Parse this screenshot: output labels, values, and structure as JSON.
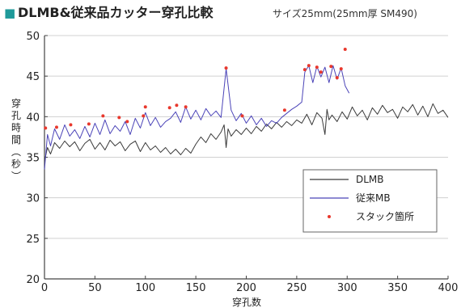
{
  "header": {
    "marker": "■",
    "title": "DLMB&従来品カッター穿孔比較",
    "subtitle": "サイズ25mm(25mm厚 SM490)"
  },
  "colors": {
    "title_marker": "#1f9a9a",
    "dlmb": "#3a3a3a",
    "conventional": "#4b44b8",
    "stack": "#e8382d",
    "axis": "#444444",
    "grid": "#d0d0d0"
  },
  "chart_data": {
    "type": "line",
    "xlabel": "穿孔数",
    "ylabel": "穿孔時間(秒)",
    "xlim": [
      0,
      400
    ],
    "ylim": [
      20,
      50
    ],
    "xticks": [
      0,
      50,
      100,
      150,
      200,
      250,
      300,
      350,
      400
    ],
    "yticks": [
      20,
      25,
      30,
      35,
      40,
      45,
      50
    ],
    "grid": "horizontal",
    "legend": {
      "position": "bottom-right",
      "entries": [
        "DLMB",
        "従来MB",
        "スタック箇所"
      ]
    },
    "series": [
      {
        "name": "DLMB",
        "kind": "line",
        "x": [
          0,
          3,
          6,
          10,
          15,
          20,
          25,
          30,
          35,
          40,
          45,
          50,
          55,
          60,
          65,
          70,
          75,
          80,
          85,
          90,
          95,
          100,
          105,
          110,
          115,
          120,
          125,
          130,
          135,
          140,
          145,
          150,
          155,
          160,
          165,
          170,
          175,
          178,
          180,
          182,
          185,
          190,
          195,
          200,
          205,
          210,
          215,
          220,
          225,
          230,
          235,
          240,
          245,
          250,
          255,
          260,
          265,
          270,
          275,
          278,
          280,
          282,
          285,
          290,
          295,
          300,
          305,
          310,
          315,
          320,
          325,
          330,
          335,
          340,
          345,
          350,
          355,
          360,
          365,
          370,
          375,
          380,
          385,
          390,
          395,
          400
        ],
        "y": [
          34.5,
          36.2,
          35.4,
          36.8,
          36.1,
          37.0,
          36.3,
          36.9,
          35.8,
          36.7,
          37.2,
          36.0,
          36.8,
          35.9,
          37.1,
          36.4,
          36.9,
          35.8,
          36.6,
          37.0,
          35.7,
          36.8,
          35.9,
          36.4,
          35.6,
          36.2,
          35.4,
          36.0,
          35.3,
          36.1,
          35.5,
          36.6,
          37.5,
          36.8,
          37.9,
          37.2,
          38.1,
          39.0,
          36.2,
          38.5,
          37.6,
          38.4,
          37.8,
          38.6,
          37.9,
          38.8,
          38.2,
          39.1,
          38.5,
          39.3,
          38.7,
          39.4,
          38.9,
          39.6,
          39.2,
          40.3,
          39.0,
          40.5,
          39.8,
          37.8,
          40.9,
          39.6,
          40.2,
          39.4,
          40.6,
          39.7,
          41.2,
          40.1,
          40.8,
          39.6,
          41.1,
          40.3,
          41.4,
          40.5,
          40.9,
          39.8,
          41.2,
          40.6,
          41.5,
          40.2,
          41.3,
          40.0,
          41.6,
          40.4,
          40.8,
          39.9
        ]
      },
      {
        "name": "従来MB",
        "kind": "line",
        "x": [
          0,
          3,
          6,
          10,
          15,
          20,
          25,
          30,
          35,
          40,
          45,
          50,
          55,
          60,
          65,
          70,
          75,
          80,
          85,
          90,
          95,
          100,
          105,
          110,
          115,
          120,
          125,
          130,
          135,
          140,
          145,
          150,
          155,
          160,
          165,
          170,
          175,
          180,
          185,
          190,
          195,
          200,
          205,
          210,
          215,
          220,
          225,
          230,
          235,
          240,
          245,
          250,
          255,
          258,
          262,
          266,
          270,
          274,
          278,
          282,
          286,
          290,
          294,
          298,
          302
        ],
        "y": [
          33.5,
          37.8,
          36.4,
          38.5,
          37.2,
          39.0,
          37.6,
          38.4,
          37.3,
          38.8,
          37.5,
          39.2,
          37.8,
          39.6,
          37.9,
          38.9,
          38.2,
          39.4,
          37.8,
          39.8,
          38.6,
          40.5,
          38.9,
          39.9,
          38.7,
          39.4,
          39.8,
          40.6,
          39.3,
          41.2,
          39.7,
          40.8,
          39.6,
          41.0,
          40.1,
          40.7,
          39.9,
          45.9,
          40.8,
          39.5,
          40.4,
          39.2,
          40.1,
          39.0,
          39.8,
          38.8,
          39.5,
          39.2,
          39.9,
          40.4,
          40.9,
          41.3,
          41.8,
          45.5,
          46.3,
          44.2,
          46.2,
          44.9,
          46.1,
          44.2,
          46.3,
          44.6,
          46.0,
          43.8,
          42.9
        ]
      },
      {
        "name": "スタック箇所",
        "kind": "scatter",
        "x": [
          1,
          12,
          26,
          44,
          58,
          74,
          82,
          98,
          100,
          124,
          131,
          140,
          180,
          196,
          238,
          258,
          262,
          270,
          274,
          284,
          290,
          294,
          298
        ],
        "y": [
          38.6,
          38.7,
          39.0,
          39.1,
          40.1,
          39.9,
          39.4,
          40.1,
          41.2,
          41.1,
          41.4,
          41.2,
          46.0,
          40.1,
          40.8,
          45.8,
          46.3,
          46.1,
          45.5,
          46.2,
          44.8,
          45.9,
          48.3
        ]
      }
    ]
  }
}
